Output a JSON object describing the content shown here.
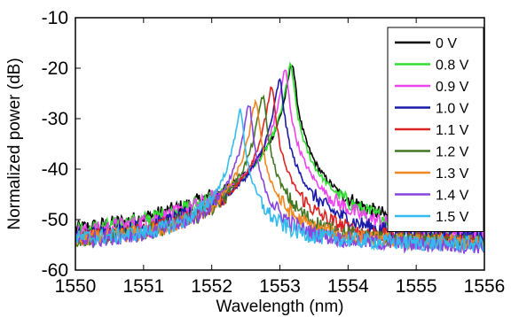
{
  "chart_data": {
    "type": "line",
    "title": "",
    "xlabel": "Wavelength (nm)",
    "ylabel": "Normalized power (dB)",
    "xlim": [
      1550,
      1556
    ],
    "ylim": [
      -60,
      -10
    ],
    "x_ticks": [
      "1550",
      "1551",
      "1552",
      "1553",
      "1554",
      "1555",
      "1556"
    ],
    "y_ticks": [
      "-10",
      "-20",
      "-30",
      "-40",
      "-50",
      "-60"
    ],
    "grid": false,
    "legend_position": "top-right",
    "series": [
      {
        "name": "0 V",
        "color": "#000000",
        "peak": [
          1553.18,
          -19
        ],
        "ends": [
          -55.5,
          -53.5
        ]
      },
      {
        "name": "0.8 V",
        "color": "#33dd33",
        "peak": [
          1553.16,
          -19.5
        ],
        "ends": [
          -56,
          -54
        ]
      },
      {
        "name": "0.9 V",
        "color": "#ee44ee",
        "peak": [
          1553.08,
          -20.5
        ],
        "ends": [
          -55.5,
          -54
        ]
      },
      {
        "name": "1.0 V",
        "color": "#1a1aaa",
        "peak": [
          1553.0,
          -22.5
        ],
        "ends": [
          -55.5,
          -54.5
        ]
      },
      {
        "name": "1.1 V",
        "color": "#dd2222",
        "peak": [
          1552.88,
          -24
        ],
        "ends": [
          -55.5,
          -55
        ]
      },
      {
        "name": "1.2 V",
        "color": "#447722",
        "peak": [
          1552.75,
          -25.5
        ],
        "ends": [
          -55.5,
          -55
        ]
      },
      {
        "name": "1.3 V",
        "color": "#ee8822",
        "peak": [
          1552.65,
          -26.5
        ],
        "ends": [
          -55,
          -55
        ]
      },
      {
        "name": "1.4 V",
        "color": "#8844dd",
        "peak": [
          1552.55,
          -27.5
        ],
        "ends": [
          -55,
          -55.5
        ]
      },
      {
        "name": "1.5 V",
        "color": "#33bbee",
        "peak": [
          1552.42,
          -28.5
        ],
        "ends": [
          -54.5,
          -55
        ]
      }
    ]
  }
}
